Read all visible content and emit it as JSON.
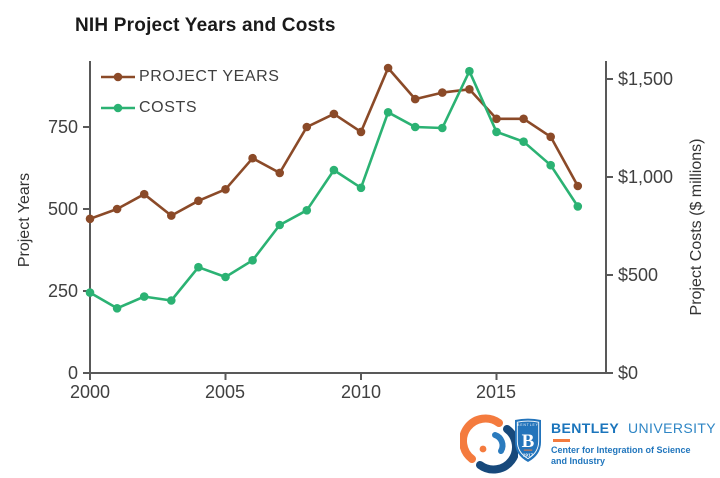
{
  "chart_data": {
    "type": "line",
    "title": "NIH Project Years and Costs",
    "x": [
      2000,
      2001,
      2002,
      2003,
      2004,
      2005,
      2006,
      2007,
      2008,
      2009,
      2010,
      2011,
      2012,
      2013,
      2014,
      2015,
      2016,
      2017,
      2018
    ],
    "series": [
      {
        "name": "PROJECT YEARS",
        "axis": "left",
        "color": "#8b4a28",
        "values": [
          470,
          500,
          545,
          480,
          525,
          560,
          655,
          610,
          750,
          790,
          735,
          930,
          835,
          855,
          865,
          775,
          775,
          720,
          570
        ]
      },
      {
        "name": "COSTS",
        "axis": "right",
        "color": "#2bb273",
        "values": [
          410,
          330,
          390,
          370,
          540,
          490,
          575,
          755,
          830,
          1035,
          945,
          1330,
          1255,
          1250,
          1540,
          1230,
          1180,
          1060,
          850
        ]
      }
    ],
    "x_axis": {
      "range": [
        2000,
        2019
      ],
      "tick_values": [
        2000,
        2005,
        2010,
        2015
      ],
      "tick_labels": [
        "2000",
        "2005",
        "2010",
        "2015"
      ]
    },
    "y_left": {
      "label": "Project Years",
      "range": [
        0,
        954
      ],
      "tick_values": [
        0,
        250,
        500,
        750
      ],
      "tick_labels": [
        "0",
        "250",
        "500",
        "750"
      ]
    },
    "y_right": {
      "label": "Project Costs ($ millions)",
      "range": [
        0,
        1592
      ],
      "tick_values": [
        0,
        500,
        1000,
        1500
      ],
      "tick_labels": [
        "$0",
        "$500",
        "$1,000",
        "$1,500"
      ]
    },
    "grid": false,
    "legend_position": "top-left-inside",
    "axis_color": "#595959",
    "text_color": "#404040"
  },
  "logo": {
    "wordmark_primary": "BENTLEY",
    "wordmark_secondary": "UNIVERSITY",
    "tagline_line1": "Center for Integration of Science",
    "tagline_line2": "and Industry",
    "shield": {
      "top_text": "BENTLEY",
      "letter": "B",
      "year": "1917"
    },
    "colors": {
      "blue": "#2374bb",
      "wordmark_blue": "#1b75bc",
      "orange": "#f47b3e",
      "navy": "#17497b",
      "light_blue": "#2b7bbe"
    }
  }
}
